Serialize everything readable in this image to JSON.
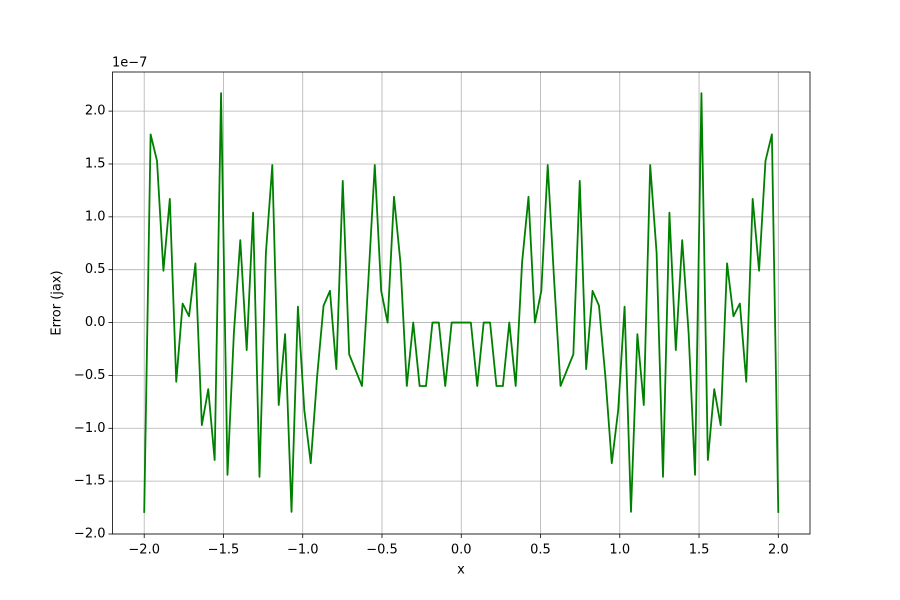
{
  "chart_data": {
    "type": "line",
    "x_label": "x",
    "y_label": "Error (jax)",
    "y_offset_label": "1e−7",
    "color": "#008000",
    "grid": true,
    "x": [
      -2,
      -1.9596,
      -1.9192,
      -1.8788,
      -1.8384,
      -1.798,
      -1.7576,
      -1.7172,
      -1.6768,
      -1.6364,
      -1.596,
      -1.5556,
      -1.5152,
      -1.4747,
      -1.4343,
      -1.3939,
      -1.3535,
      -1.3131,
      -1.2727,
      -1.2323,
      -1.1919,
      -1.1515,
      -1.1111,
      -1.0707,
      -1.0303,
      -0.9899,
      -0.9495,
      -0.9091,
      -0.8687,
      -0.8283,
      -0.7879,
      -0.7475,
      -0.7071,
      -0.6667,
      -0.6263,
      -0.5859,
      -0.5455,
      -0.5051,
      -0.4646,
      -0.4242,
      -0.3838,
      -0.3434,
      -0.303,
      -0.2626,
      -0.2222,
      -0.1818,
      -0.1414,
      -0.101,
      -0.0606,
      -0.0202,
      0.0202,
      0.0606,
      0.101,
      0.1414,
      0.1818,
      0.2222,
      0.2626,
      0.303,
      0.3434,
      0.3838,
      0.4242,
      0.4646,
      0.5051,
      0.5455,
      0.5859,
      0.6263,
      0.6667,
      0.7071,
      0.7475,
      0.7879,
      0.8283,
      0.8687,
      0.9091,
      0.9495,
      0.9899,
      1.0303,
      1.0707,
      1.1111,
      1.1515,
      1.1919,
      1.2323,
      1.2727,
      1.3131,
      1.3535,
      1.3939,
      1.4343,
      1.4747,
      1.5152,
      1.5556,
      1.596,
      1.6364,
      1.6768,
      1.7172,
      1.7576,
      1.798,
      1.8384,
      1.8788,
      1.9192,
      1.9596,
      2
    ],
    "values": [
      -1.8,
      1.78,
      1.53,
      0.49,
      1.17,
      -0.56,
      0.18,
      0.06,
      0.56,
      -0.97,
      -0.63,
      -1.3,
      2.17,
      -1.44,
      -0.1,
      0.78,
      -0.26,
      1.04,
      -1.46,
      0.66,
      1.49,
      -0.78,
      -0.11,
      -1.79,
      0.15,
      -0.83,
      -1.33,
      -0.51,
      0.16,
      0.3,
      -0.44,
      1.34,
      -0.3,
      -0.45,
      -0.6,
      0.4,
      1.49,
      0.3,
      0,
      1.19,
      0.57,
      -0.6,
      0,
      -0.6,
      -0.6,
      0,
      0,
      -0.6,
      0,
      0,
      0,
      0,
      -0.6,
      0,
      0,
      -0.6,
      -0.6,
      0,
      -0.6,
      0.57,
      1.19,
      0,
      0.3,
      1.49,
      0.4,
      -0.6,
      -0.45,
      -0.3,
      1.34,
      -0.44,
      0.3,
      0.16,
      -0.51,
      -1.33,
      -0.83,
      0.15,
      -1.79,
      -0.11,
      -0.78,
      1.49,
      0.66,
      -1.46,
      1.04,
      -0.26,
      0.78,
      -0.1,
      -1.44,
      2.17,
      -1.3,
      -0.63,
      -0.97,
      0.56,
      0.06,
      0.18,
      -0.56,
      1.17,
      0.49,
      1.53,
      1.78,
      -1.8
    ],
    "xlim": [
      -2.2,
      2.2
    ],
    "ylim": [
      -2.0,
      2.37
    ],
    "xticks": [
      {
        "value": -2,
        "label": "−2.0"
      },
      {
        "value": -1.5,
        "label": "−1.5"
      },
      {
        "value": -1,
        "label": "−1.0"
      },
      {
        "value": -0.5,
        "label": "−0.5"
      },
      {
        "value": 0,
        "label": "0.0"
      },
      {
        "value": 0.5,
        "label": "0.5"
      },
      {
        "value": 1,
        "label": "1.0"
      },
      {
        "value": 1.5,
        "label": "1.5"
      },
      {
        "value": 2,
        "label": "2.0"
      }
    ],
    "yticks": [
      {
        "value": -2,
        "label": "−2.0"
      },
      {
        "value": -1.5,
        "label": "−1.5"
      },
      {
        "value": -1,
        "label": "−1.0"
      },
      {
        "value": -0.5,
        "label": "−0.5"
      },
      {
        "value": 0,
        "label": "0.0"
      },
      {
        "value": 0.5,
        "label": "0.5"
      },
      {
        "value": 1,
        "label": "1.0"
      },
      {
        "value": 1.5,
        "label": "1.5"
      },
      {
        "value": 2,
        "label": "2.0"
      }
    ]
  }
}
